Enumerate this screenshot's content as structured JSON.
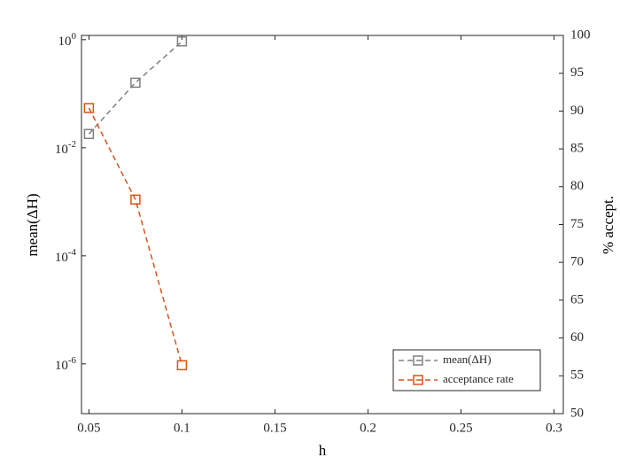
{
  "chart_data": {
    "type": "line",
    "x_label": "h",
    "y_label": "mean(ΔH)",
    "y2_label": "% accept.",
    "x": [
      0.05,
      0.075,
      0.1
    ],
    "series": [
      {
        "name": "mean(ΔH)",
        "color": "#808080",
        "values": [
          0.018,
          0.16,
          0.93
        ]
      },
      {
        "name": "acceptance rate",
        "color": "#d95319",
        "values": [
          90.4,
          78.3,
          56.4
        ],
        "axis": "y2"
      }
    ],
    "xlim": [
      0.046,
      0.305
    ],
    "xticks": [
      0.05,
      0.1,
      0.15,
      0.2,
      0.25,
      0.3
    ],
    "ylim": [
      1.2e-07,
      1.2
    ],
    "y_scale": "log",
    "yticks": [
      {
        "value": 1,
        "label": "10^0"
      },
      {
        "value": 0.01,
        "label": "10^-2"
      },
      {
        "value": 0.0001,
        "label": "10^-4"
      },
      {
        "value": 1e-06,
        "label": "10^-6"
      }
    ],
    "y2lim": [
      50,
      100
    ],
    "y2ticks": [
      50,
      55,
      60,
      65,
      70,
      75,
      80,
      85,
      90,
      95,
      100
    ],
    "legend": "lower right",
    "line_style": "dashed",
    "marker": "square"
  }
}
